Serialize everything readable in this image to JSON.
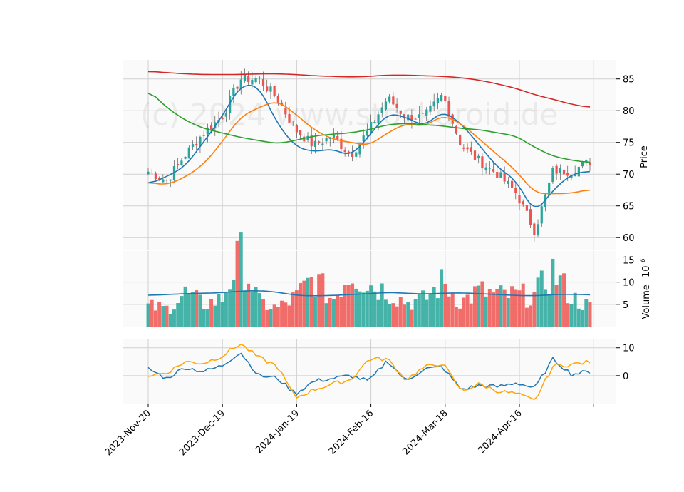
{
  "chart_data": {
    "type": "candlestick",
    "watermark": "(c) 2024 www.stockdroid.de",
    "x_tick_labels": [
      "2023-Nov-20",
      "2023-Dec-19",
      "2024-Jan-19",
      "2024-Feb-16",
      "2024-Mar-18",
      "2024-Apr-16"
    ],
    "price_panel": {
      "ylabel": "Price",
      "yticks": [
        60,
        65,
        70,
        75,
        80,
        85
      ],
      "ylim": [
        58,
        88
      ],
      "up_color": "#26a69a",
      "down_color": "#ef5350",
      "candles_sampled": [
        {
          "i": 0,
          "close": 70.4
        },
        {
          "i": 5,
          "close": 69.0
        },
        {
          "i": 10,
          "close": 73.0
        },
        {
          "i": 15,
          "close": 76.5
        },
        {
          "i": 20,
          "close": 79.0
        },
        {
          "i": 25,
          "close": 85.0
        },
        {
          "i": 30,
          "close": 85.0
        },
        {
          "i": 35,
          "close": 82.0
        },
        {
          "i": 40,
          "close": 77.0
        },
        {
          "i": 45,
          "close": 74.5
        },
        {
          "i": 50,
          "close": 76.0
        },
        {
          "i": 55,
          "close": 73.0
        },
        {
          "i": 60,
          "close": 77.0
        },
        {
          "i": 65,
          "close": 82.0
        },
        {
          "i": 70,
          "close": 79.0
        },
        {
          "i": 75,
          "close": 79.0
        },
        {
          "i": 80,
          "close": 82.5
        },
        {
          "i": 85,
          "close": 74.5
        },
        {
          "i": 90,
          "close": 72.0
        },
        {
          "i": 95,
          "close": 70.0
        },
        {
          "i": 100,
          "close": 67.0
        },
        {
          "i": 105,
          "close": 61.0
        },
        {
          "i": 110,
          "close": 70.5
        },
        {
          "i": 115,
          "close": 70.5
        },
        {
          "i": 119,
          "close": 72.0
        }
      ],
      "ma_lines": [
        {
          "color": "#1f77b4",
          "values": [
            68.4,
            69.6,
            71.2,
            75.0,
            79.0,
            84.0,
            84.0,
            78.0,
            74.3,
            73.5,
            74.0,
            72.8,
            76.0,
            79.6,
            79.0,
            77.5,
            80.0,
            78.0,
            74.5,
            71.0,
            69.0,
            63.8,
            67.5,
            70.0,
            70.5
          ]
        },
        {
          "color": "#ff7f0e",
          "values": [
            68.7,
            68.3,
            69.5,
            71.5,
            75.0,
            79.0,
            80.5,
            81.6,
            79.5,
            77.0,
            75.5,
            75.0,
            74.5,
            76.5,
            78.0,
            77.5,
            79.3,
            78.0,
            75.5,
            73.0,
            70.5,
            67.0,
            66.9,
            67.0,
            67.6
          ]
        },
        {
          "color": "#2ca02c",
          "values": [
            83.3,
            80.5,
            78.5,
            77.2,
            76.5,
            75.8,
            75.3,
            74.8,
            75.3,
            76.0,
            76.3,
            76.5,
            77.0,
            77.8,
            78.0,
            77.8,
            77.6,
            77.2,
            77.0,
            76.5,
            76.0,
            74.2,
            72.8,
            72.2,
            71.8
          ]
        },
        {
          "color": "#d62728",
          "values": [
            86.2,
            86.0,
            85.8,
            85.7,
            85.7,
            85.7,
            85.8,
            85.8,
            85.7,
            85.5,
            85.4,
            85.3,
            85.4,
            85.6,
            85.6,
            85.5,
            85.4,
            85.2,
            84.8,
            84.2,
            83.5,
            82.5,
            81.8,
            81.0,
            80.5
          ]
        }
      ]
    },
    "volume_panel": {
      "ylabel": "Volume",
      "multiplier_label": "10",
      "multiplier_exp": "6",
      "yticks": [
        5,
        10,
        15
      ],
      "ylim": [
        0,
        17
      ],
      "bars_sampled": [
        4.5,
        4.0,
        7.5,
        5.0,
        6.0,
        16.0,
        5.5,
        4.0,
        6.5,
        11.0,
        6.0,
        12.5,
        9.5,
        8.0,
        5.5,
        6.0,
        10.0,
        5.5,
        8.0,
        7.0,
        7.0,
        7.0,
        12.5,
        6.5,
        4.5
      ],
      "avg_line": {
        "color": "#1f77b4",
        "values": [
          7.0,
          7.2,
          7.4,
          7.5,
          7.6,
          8.0,
          8.1,
          7.8,
          7.0,
          6.9,
          7.0,
          7.2,
          7.4,
          7.7,
          7.5,
          7.3,
          7.5,
          7.6,
          7.4,
          7.2,
          7.0,
          6.9,
          7.2,
          7.3,
          7.1
        ]
      }
    },
    "osc_panel": {
      "yticks": [
        0,
        10
      ],
      "ylim": [
        -10,
        13
      ],
      "lines": [
        {
          "color": "#1f77b4",
          "values": [
            2.5,
            -1.0,
            3.0,
            1.5,
            3.5,
            8.5,
            0.0,
            -0.8,
            -6.5,
            -2.0,
            -1.0,
            0.0,
            -2.0,
            5.5,
            -2.0,
            2.5,
            3.0,
            -5.0,
            -3.5,
            -4.0,
            -2.5,
            -4.5,
            6.0,
            0.5,
            1.5
          ]
        },
        {
          "color": "#ffa500",
          "values": [
            0.0,
            1.0,
            5.0,
            4.5,
            7.0,
            11.5,
            6.5,
            3.5,
            -8.0,
            -5.0,
            -3.0,
            -1.5,
            6.0,
            6.0,
            -1.5,
            3.0,
            4.5,
            -5.5,
            -3.0,
            -5.5,
            -6.5,
            -9.0,
            3.5,
            4.0,
            5.0
          ]
        }
      ]
    }
  }
}
